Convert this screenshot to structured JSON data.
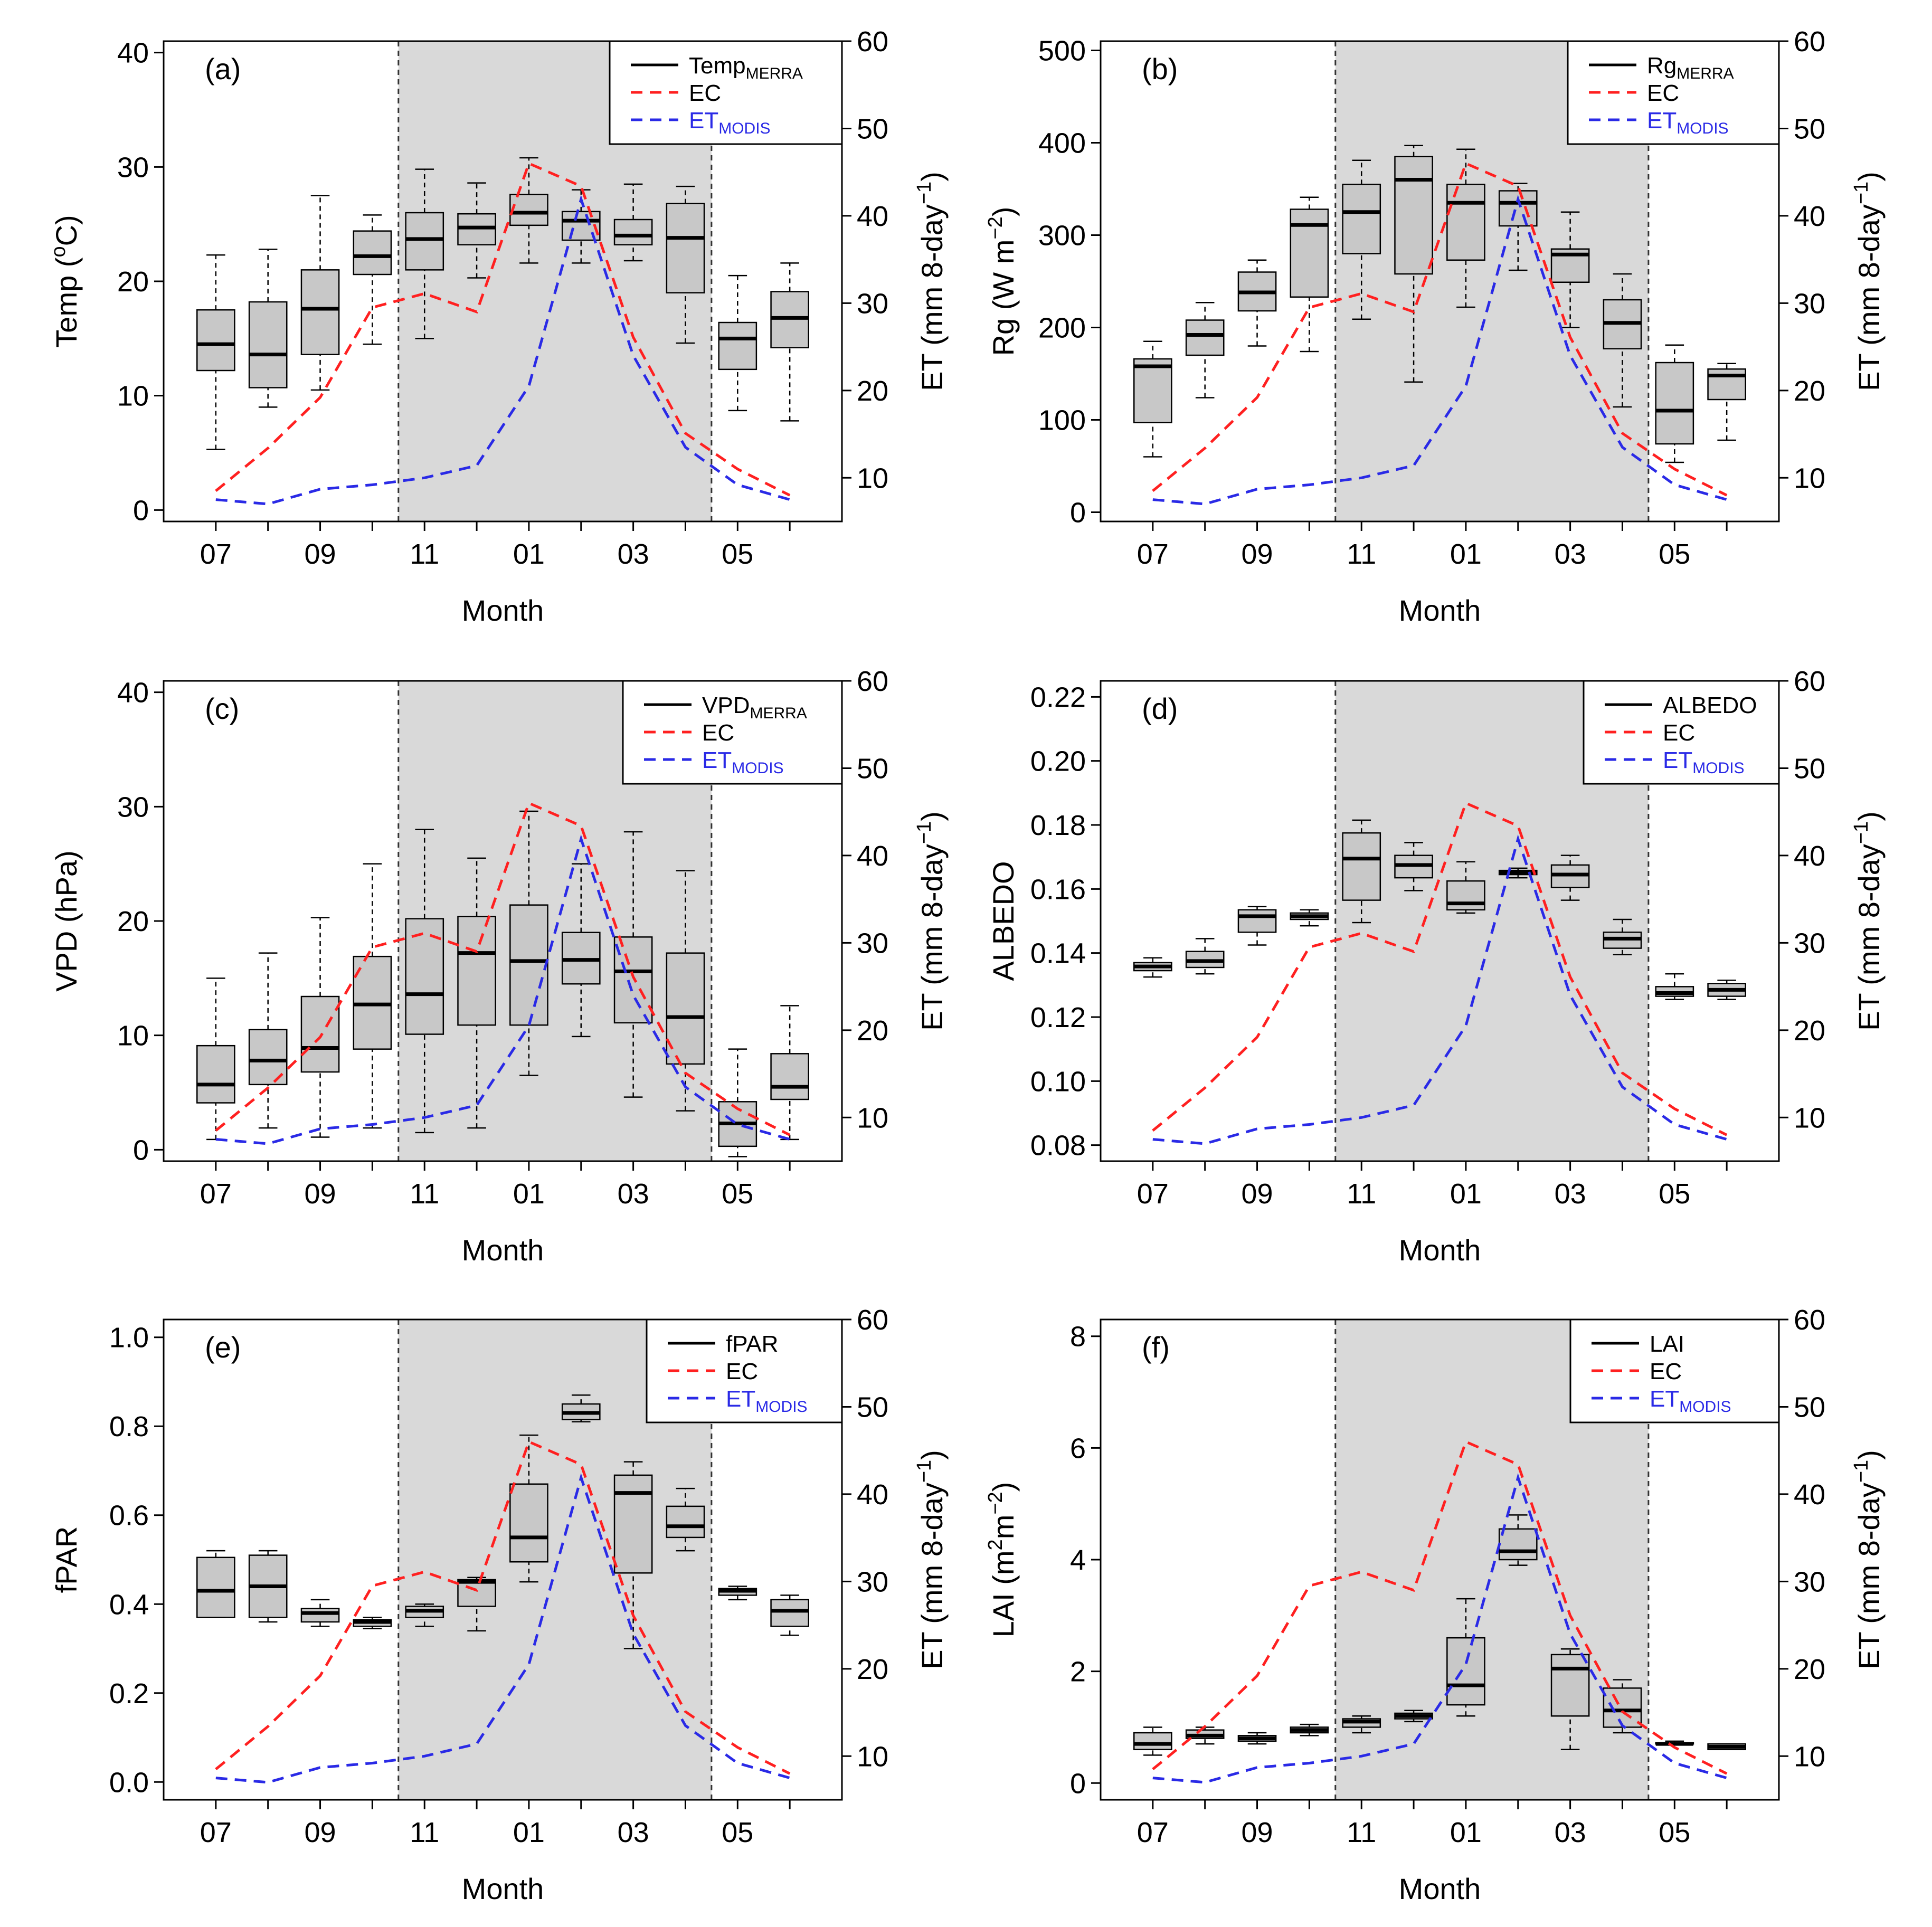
{
  "figure": {
    "months": [
      "07",
      "08",
      "09",
      "10",
      "11",
      "12",
      "01",
      "02",
      "03",
      "04",
      "05",
      "06"
    ],
    "xticks": [
      "07",
      "09",
      "11",
      "01",
      "03",
      "05"
    ],
    "xlabel": "Month",
    "right_ylabel": "ET  (mm 8-day",
    "right_ylabel_sup": "−1",
    "right_ylabel_close": ")",
    "right_ylim": [
      5,
      60
    ],
    "right_yticks": [
      "10",
      "20",
      "30",
      "40",
      "50",
      "60"
    ],
    "wet_season_shading": "11 to 04",
    "colors": {
      "box_fill": "#c8c8c8",
      "shade": "#d9d9d9",
      "ec": "#ff2020",
      "modis": "#2a2ae6"
    }
  },
  "chart_data": [
    {
      "type": "box",
      "label": "(a)",
      "ylabel": {
        "main": "Temp (",
        "sup": "o",
        "tail": "C)"
      },
      "ylim": [
        -1,
        41
      ],
      "yticks": [
        "0",
        "10",
        "20",
        "30",
        "40"
      ],
      "legend": {
        "var_main": "Temp",
        "var_sub": "MERRA",
        "ec": "EC",
        "modis_main": "ET",
        "modis_sub": "MODIS"
      },
      "boxes": [
        [
          5.3,
          12.2,
          14.5,
          17.5,
          22.3
        ],
        [
          9,
          10.7,
          13.6,
          18.2,
          22.8
        ],
        [
          10.5,
          13.6,
          17.6,
          21,
          27.5
        ],
        [
          14.5,
          20.6,
          22.2,
          24.4,
          25.8
        ],
        [
          15,
          21,
          23.7,
          26,
          29.8
        ],
        [
          20.3,
          23.2,
          24.7,
          25.9,
          28.6
        ],
        [
          21.6,
          24.9,
          26,
          27.6,
          30.8
        ],
        [
          21.6,
          23.6,
          25.3,
          26.1,
          28
        ],
        [
          21.8,
          23.2,
          24,
          25.4,
          28.5
        ],
        [
          14.6,
          19,
          23.8,
          26.8,
          28.3
        ],
        [
          8.7,
          12.3,
          15,
          16.4,
          20.5
        ],
        [
          7.8,
          14.2,
          16.8,
          19.1,
          21.6
        ]
      ],
      "ec": [
        8.5,
        13.4,
        19.2,
        29.5,
        31.1,
        29,
        46,
        43.4,
        26.1,
        15.1,
        11,
        8
      ],
      "modis": [
        7.5,
        7,
        8.7,
        9.2,
        10,
        11.4,
        20.5,
        41.9,
        24,
        13.5,
        9.2,
        7.5
      ]
    },
    {
      "type": "box",
      "label": "(b)",
      "ylabel": {
        "main": "Rg (W m",
        "sup": "−2",
        "tail": ")"
      },
      "ylim": [
        -10,
        510
      ],
      "yticks": [
        "0",
        "100",
        "200",
        "300",
        "400",
        "500"
      ],
      "legend": {
        "var_main": "Rg",
        "var_sub": "MERRA",
        "ec": "EC",
        "modis_main": "ET",
        "modis_sub": "MODIS"
      },
      "boxes": [
        [
          60,
          97,
          158,
          166,
          185
        ],
        [
          124,
          170,
          192,
          208,
          227
        ],
        [
          180,
          218,
          238,
          260,
          273
        ],
        [
          174,
          233,
          311,
          328,
          341
        ],
        [
          209,
          280,
          325,
          355,
          381
        ],
        [
          141,
          258,
          360,
          385,
          397
        ],
        [
          222,
          273,
          335,
          355,
          393
        ],
        [
          262,
          310,
          335,
          348,
          356
        ],
        [
          200,
          249,
          279,
          285,
          325
        ],
        [
          114,
          177,
          205,
          230,
          258
        ],
        [
          54,
          74,
          110,
          162,
          181
        ],
        [
          78,
          122,
          148,
          155,
          161
        ]
      ],
      "ec": [
        8.5,
        13.4,
        19.2,
        29.5,
        31.1,
        29,
        46,
        43.4,
        26.1,
        15.1,
        11,
        8
      ],
      "modis": [
        7.5,
        7,
        8.7,
        9.2,
        10,
        11.4,
        20.5,
        41.9,
        24,
        13.5,
        9.2,
        7.5
      ]
    },
    {
      "type": "box",
      "label": "(c)",
      "ylabel": {
        "main": "VPD (hPa)",
        "sup": "",
        "tail": ""
      },
      "ylim": [
        -1,
        41
      ],
      "yticks": [
        "0",
        "10",
        "20",
        "30",
        "40"
      ],
      "legend": {
        "var_main": "VPD",
        "var_sub": "MERRA",
        "ec": "EC",
        "modis_main": "ET",
        "modis_sub": "MODIS"
      },
      "boxes": [
        [
          0.9,
          4.1,
          5.7,
          9.1,
          15
        ],
        [
          1.9,
          5.7,
          7.8,
          10.5,
          17.2
        ],
        [
          1.1,
          6.8,
          8.9,
          13.4,
          20.3
        ],
        [
          1.9,
          8.8,
          12.7,
          16.9,
          25
        ],
        [
          1.5,
          10.1,
          13.6,
          20.2,
          28
        ],
        [
          1.9,
          10.9,
          17.2,
          20.4,
          25.5
        ],
        [
          6.5,
          10.9,
          16.5,
          21.4,
          29.6
        ],
        [
          9.9,
          14.5,
          16.6,
          19,
          25
        ],
        [
          4.6,
          11.1,
          15.6,
          18.6,
          27.8
        ],
        [
          3.4,
          7.5,
          11.6,
          17.2,
          24.4
        ],
        [
          -0.6,
          0.3,
          2.3,
          4.2,
          8.8
        ],
        [
          0.9,
          4.4,
          5.5,
          8.4,
          12.6
        ]
      ],
      "ec": [
        8.5,
        13.4,
        19.2,
        29.5,
        31.1,
        29,
        46,
        43.4,
        26.1,
        15.1,
        11,
        8
      ],
      "modis": [
        7.5,
        7,
        8.7,
        9.2,
        10,
        11.4,
        20.5,
        41.9,
        24,
        13.5,
        9.2,
        7.5
      ]
    },
    {
      "type": "box",
      "label": "(d)",
      "ylabel": {
        "main": "ALBEDO",
        "sup": "",
        "tail": ""
      },
      "ylim": [
        0.075,
        0.225
      ],
      "yticks": [
        "0.08",
        "0.10",
        "0.12",
        "0.14",
        "0.16",
        "0.18",
        "0.20",
        "0.22"
      ],
      "legend": {
        "var_main": "ALBEDO",
        "var_sub": "",
        "ec": "EC",
        "modis_main": "ET",
        "modis_sub": "MODIS"
      },
      "boxes": [
        [
          0.1325,
          0.1345,
          0.1358,
          0.137,
          0.1385
        ],
        [
          0.1335,
          0.1355,
          0.1375,
          0.1405,
          0.1445
        ],
        [
          0.1425,
          0.1465,
          0.1515,
          0.1535,
          0.1545
        ],
        [
          0.1485,
          0.1505,
          0.1515,
          0.1525,
          0.1535
        ],
        [
          0.1495,
          0.1565,
          0.1695,
          0.1775,
          0.1815
        ],
        [
          0.1595,
          0.1635,
          0.1675,
          0.1705,
          0.1745
        ],
        [
          0.1525,
          0.1535,
          0.1555,
          0.1625,
          0.1685
        ],
        [
          0.1635,
          0.1645,
          0.1652,
          0.1658,
          0.1665
        ],
        [
          0.1565,
          0.1605,
          0.1645,
          0.1675,
          0.1705
        ],
        [
          0.1395,
          0.1415,
          0.1445,
          0.1465,
          0.1505
        ],
        [
          0.1255,
          0.1265,
          0.1275,
          0.1295,
          0.1335
        ],
        [
          0.1255,
          0.1265,
          0.1285,
          0.1305,
          0.1315
        ]
      ],
      "ec": [
        8.5,
        13.4,
        19.2,
        29.5,
        31.1,
        29,
        46,
        43.4,
        26.1,
        15.1,
        11,
        8
      ],
      "modis": [
        7.5,
        7,
        8.7,
        9.2,
        10,
        11.4,
        20.5,
        41.9,
        24,
        13.5,
        9.2,
        7.5
      ]
    },
    {
      "type": "box",
      "label": "(e)",
      "ylabel": {
        "main": "fPAR",
        "sup": "",
        "tail": ""
      },
      "ylim": [
        -0.04,
        1.04
      ],
      "yticks": [
        "0.0",
        "0.2",
        "0.4",
        "0.6",
        "0.8",
        "1.0"
      ],
      "legend": {
        "var_main": "fPAR",
        "var_sub": "",
        "ec": "EC",
        "modis_main": "ET",
        "modis_sub": "MODIS"
      },
      "boxes": [
        [
          0.37,
          0.37,
          0.43,
          0.505,
          0.52
        ],
        [
          0.36,
          0.37,
          0.44,
          0.51,
          0.52
        ],
        [
          0.35,
          0.36,
          0.38,
          0.39,
          0.41
        ],
        [
          0.345,
          0.35,
          0.36,
          0.365,
          0.37
        ],
        [
          0.35,
          0.37,
          0.385,
          0.395,
          0.4
        ],
        [
          0.34,
          0.395,
          0.45,
          0.455,
          0.46
        ],
        [
          0.45,
          0.495,
          0.55,
          0.67,
          0.78
        ],
        [
          0.81,
          0.815,
          0.83,
          0.85,
          0.87
        ],
        [
          0.3,
          0.47,
          0.65,
          0.69,
          0.72
        ],
        [
          0.52,
          0.55,
          0.575,
          0.62,
          0.66
        ],
        [
          0.41,
          0.42,
          0.43,
          0.435,
          0.44
        ],
        [
          0.33,
          0.35,
          0.385,
          0.41,
          0.42
        ]
      ],
      "ec": [
        8.5,
        13.4,
        19.2,
        29.5,
        31.1,
        29,
        46,
        43.4,
        26.1,
        15.1,
        11,
        8
      ],
      "modis": [
        7.5,
        7,
        8.7,
        9.2,
        10,
        11.4,
        20.5,
        41.9,
        24,
        13.5,
        9.2,
        7.5
      ]
    },
    {
      "type": "box",
      "label": "(f)",
      "ylabel": {
        "main": "LAI (m",
        "sup": "2",
        "mid": "m",
        "sup2": "−2",
        "tail": ")"
      },
      "ylim": [
        -0.3,
        8.3
      ],
      "yticks": [
        "0",
        "2",
        "4",
        "6",
        "8"
      ],
      "legend": {
        "var_main": "LAI",
        "var_sub": "",
        "ec": "EC",
        "modis_main": "ET",
        "modis_sub": "MODIS"
      },
      "boxes": [
        [
          0.5,
          0.6,
          0.7,
          0.9,
          1.0
        ],
        [
          0.7,
          0.8,
          0.85,
          0.95,
          1.0
        ],
        [
          0.7,
          0.75,
          0.8,
          0.85,
          0.9
        ],
        [
          0.85,
          0.9,
          0.95,
          1.0,
          1.05
        ],
        [
          0.9,
          1.0,
          1.1,
          1.15,
          1.2
        ],
        [
          1.1,
          1.15,
          1.2,
          1.25,
          1.3
        ],
        [
          1.2,
          1.4,
          1.75,
          2.6,
          3.3
        ],
        [
          3.9,
          4.0,
          4.15,
          4.55,
          4.8
        ],
        [
          0.6,
          1.2,
          2.05,
          2.3,
          2.4
        ],
        [
          0.9,
          1.0,
          1.3,
          1.7,
          1.85
        ],
        [
          0.7,
          0.7,
          0.7,
          0.72,
          0.75
        ],
        [
          0.6,
          0.6,
          0.65,
          0.7,
          0.7
        ]
      ],
      "ec": [
        8.5,
        13.4,
        19.2,
        29.5,
        31.1,
        29,
        46,
        43.4,
        26.1,
        15.1,
        11,
        8
      ],
      "modis": [
        7.5,
        7,
        8.7,
        9.2,
        10,
        11.4,
        20.5,
        41.9,
        24,
        13.5,
        9.2,
        7.5
      ]
    }
  ]
}
